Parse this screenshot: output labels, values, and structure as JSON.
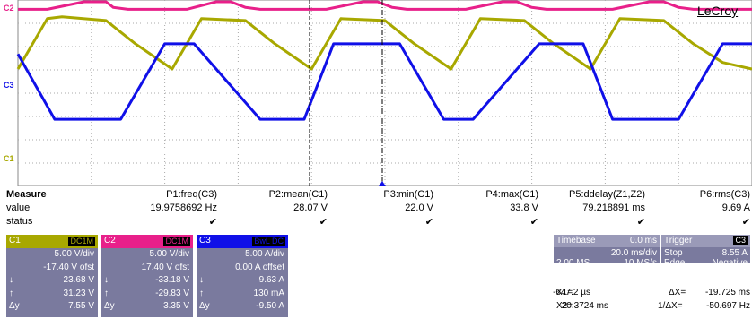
{
  "brand": "LeCroy",
  "trace_labels": {
    "c2": "C2",
    "c3": "C3",
    "c1": "C1"
  },
  "colors": {
    "c1": "#a8a800",
    "c2": "#e8208a",
    "c3": "#1010e8",
    "grid": "#aaaaaa",
    "panel": "#7a7a9e"
  },
  "chart_data": {
    "type": "line",
    "title": "",
    "xlabel": "",
    "ylabel": "",
    "series": [
      {
        "name": "C1",
        "x": [
          0,
          4,
          6,
          12,
          16,
          21,
          25,
          31,
          35,
          40,
          44,
          50,
          54,
          59,
          63,
          69,
          73,
          78,
          82,
          88,
          92,
          96,
          100
        ],
        "y": [
          22.6,
          33.4,
          33.8,
          33.0,
          28.0,
          22.6,
          33.4,
          33.0,
          28.0,
          22.6,
          33.4,
          33.0,
          28.0,
          22.6,
          33.4,
          33.0,
          28.0,
          22.6,
          33.4,
          33.0,
          28.0,
          24.0,
          22.6
        ]
      },
      {
        "name": "C2",
        "x": [
          0,
          4,
          9,
          12,
          13,
          15,
          20,
          23,
          27,
          29,
          31,
          33,
          39,
          42,
          47,
          49,
          51,
          53,
          58,
          61,
          66,
          68,
          70,
          72,
          78,
          81,
          86,
          88,
          90,
          92,
          98,
          100
        ],
        "y": [
          0.6,
          0.6,
          6.5,
          12.0,
          1.0,
          0.6,
          0.6,
          0.6,
          6.5,
          12.0,
          1.0,
          0.6,
          0.6,
          0.6,
          6.5,
          12.0,
          1.0,
          0.6,
          0.6,
          0.6,
          6.5,
          12.0,
          1.0,
          0.6,
          0.6,
          0.6,
          6.5,
          12.0,
          1.0,
          0.6,
          0.6,
          0.6
        ]
      },
      {
        "name": "C3",
        "x": [
          0,
          5,
          14,
          20,
          24,
          33,
          39,
          43,
          52,
          58,
          62,
          71,
          77,
          81,
          90,
          96,
          100
        ],
        "y": [
          8.4,
          -5.6,
          -5.6,
          10.6,
          10.6,
          -5.6,
          -5.6,
          10.6,
          10.6,
          -5.6,
          -5.6,
          10.6,
          10.6,
          -5.6,
          -5.6,
          10.6,
          10.6
        ]
      }
    ]
  },
  "measure": {
    "row_labels": [
      "Measure",
      "value",
      "status"
    ],
    "columns": [
      {
        "name": "P1:freq(C3)",
        "value": "19.9758692 Hz"
      },
      {
        "name": "P2:mean(C1)",
        "value": "28.07 V"
      },
      {
        "name": "P3:min(C1)",
        "value": "22.0 V"
      },
      {
        "name": "P4:max(C1)",
        "value": "33.8 V"
      },
      {
        "name": "P5:ddelay(Z1,Z2)",
        "value": "79.218891 ms"
      },
      {
        "name": "P6:rms(C3)",
        "value": "9.69 A"
      }
    ],
    "status_mark": "✔"
  },
  "channels": [
    {
      "name": "C1",
      "coupling": "DC1M",
      "color": "#a8a800",
      "rows": [
        [
          "",
          "5.00 V/div"
        ],
        [
          "",
          "-17.40 V ofst"
        ],
        [
          "↓",
          "23.68 V"
        ],
        [
          "↑",
          "31.23 V"
        ],
        [
          "Δy",
          "7.55 V"
        ]
      ]
    },
    {
      "name": "C2",
      "coupling": "DC1M",
      "color": "#e8208a",
      "rows": [
        [
          "",
          "5.00 V/div"
        ],
        [
          "",
          "17.40 V ofst"
        ],
        [
          "↓",
          "-33.18 V"
        ],
        [
          "↑",
          "-29.83 V"
        ],
        [
          "Δy",
          "3.35 V"
        ]
      ]
    },
    {
      "name": "C3",
      "coupling": "BwL DC",
      "color": "#1010e8",
      "rows": [
        [
          "",
          "5.00 A/div"
        ],
        [
          "",
          "0.00 A offset"
        ],
        [
          "↓",
          "9.63 A"
        ],
        [
          "↑",
          "130 mA"
        ],
        [
          "Δy",
          "-9.50 A"
        ]
      ]
    }
  ],
  "timebase": {
    "label": "Timebase",
    "delay": "0.0 ms",
    "tdiv": "20.0 ms/div",
    "samples": "2.00 MS",
    "rate": "10 MS/s"
  },
  "trigger": {
    "label": "Trigger",
    "src": "C3",
    "mode": "Stop",
    "level": "8.55 A",
    "type": "Edge",
    "slope": "Negative"
  },
  "cursors": {
    "x1_label": "X1=",
    "x1": "-647.2 µs",
    "dx_label": "ΔX=",
    "dx": "-19.725 ms",
    "x2_label": "X2=",
    "x2": "-20.3724 ms",
    "inv_label": "1/ΔX=",
    "inv": "-50.697 Hz"
  }
}
